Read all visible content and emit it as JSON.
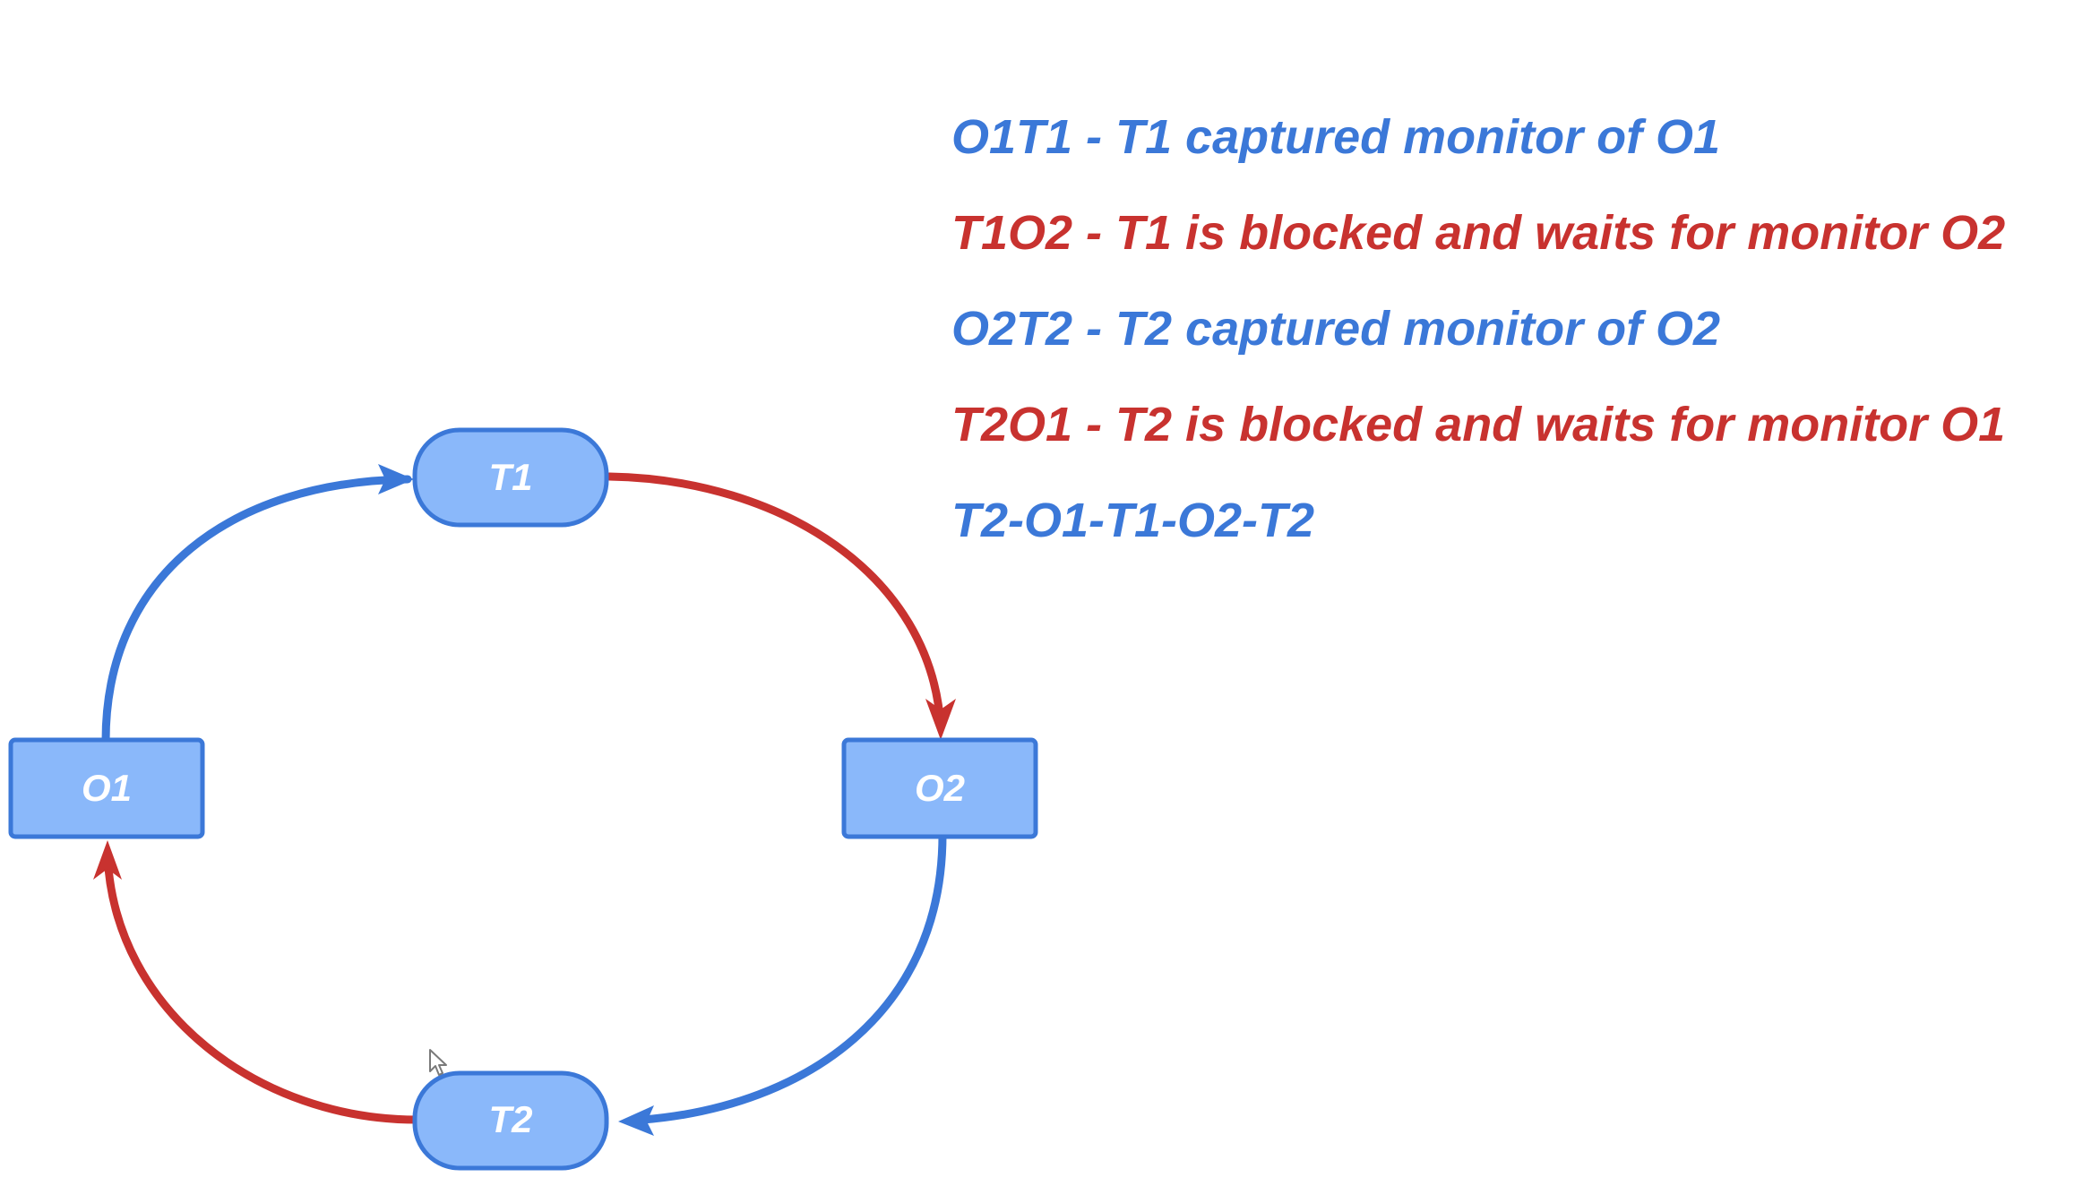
{
  "colors": {
    "blue": "#3b78d8",
    "red": "#c8322f",
    "node_fill": "#8ab8fa",
    "node_stroke": "#3b78d8",
    "node_text": "#ffffff"
  },
  "diagram": {
    "nodes": {
      "t1": {
        "label": "T1",
        "shape": "rounded"
      },
      "o2": {
        "label": "O2",
        "shape": "rectangle"
      },
      "t2": {
        "label": "T2",
        "shape": "rounded"
      },
      "o1": {
        "label": "O1",
        "shape": "rectangle"
      }
    },
    "edges": [
      {
        "from": "O1",
        "to": "T1",
        "color": "blue"
      },
      {
        "from": "T1",
        "to": "O2",
        "color": "red"
      },
      {
        "from": "O2",
        "to": "T2",
        "color": "blue"
      },
      {
        "from": "T2",
        "to": "O1",
        "color": "red"
      }
    ]
  },
  "legend": {
    "lines": [
      {
        "text": "O1T1 - T1 captured monitor of O1",
        "color": "#3b78d8"
      },
      {
        "text": "T1O2 - T1 is blocked and waits for monitor O2",
        "color": "#c8322f"
      },
      {
        "text": "O2T2 - T2 captured monitor of O2",
        "color": "#3b78d8"
      },
      {
        "text": "T2O1 - T2 is blocked and waits for monitor O1",
        "color": "#c8322f"
      },
      {
        "text": "T2-O1-T1-O2-T2",
        "color": "#3b78d8"
      }
    ]
  }
}
